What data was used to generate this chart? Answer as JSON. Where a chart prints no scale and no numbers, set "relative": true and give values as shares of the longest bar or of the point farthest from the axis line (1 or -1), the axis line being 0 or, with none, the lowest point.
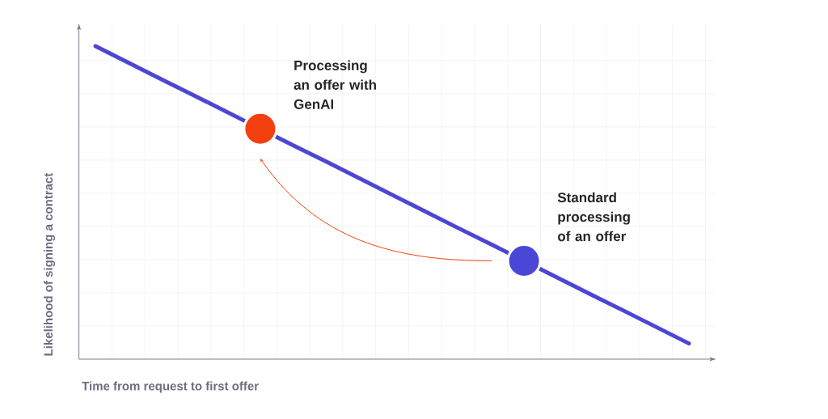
{
  "chart_data": {
    "type": "line",
    "relative": true,
    "xlabel": "Time from request to first offer",
    "ylabel": "Likelihood of signing a contract",
    "categories": [
      null,
      null,
      null,
      null,
      null,
      null,
      null,
      null,
      null,
      null,
      null,
      null,
      null,
      null,
      null,
      null,
      null,
      null,
      null
    ],
    "grid": true,
    "series": [
      {
        "color": "#4b47d6",
        "line_style": "solid",
        "values": [
          1.0,
          0.947,
          0.894,
          0.842,
          0.789,
          0.736,
          0.683,
          0.631,
          0.578,
          0.525,
          0.472,
          0.419,
          0.367,
          0.314,
          0.261,
          0.208,
          0.156,
          0.103,
          0.05
        ],
        "colors": [
          null,
          null,
          null,
          null,
          null,
          "#f4400f",
          null,
          null,
          null,
          null,
          null,
          null,
          null,
          "#4b47d6",
          null,
          null,
          null,
          null,
          null
        ]
      }
    ],
    "annotations": [
      "Processing an offer with GenAI",
      "Standard processing of an offer"
    ]
  }
}
